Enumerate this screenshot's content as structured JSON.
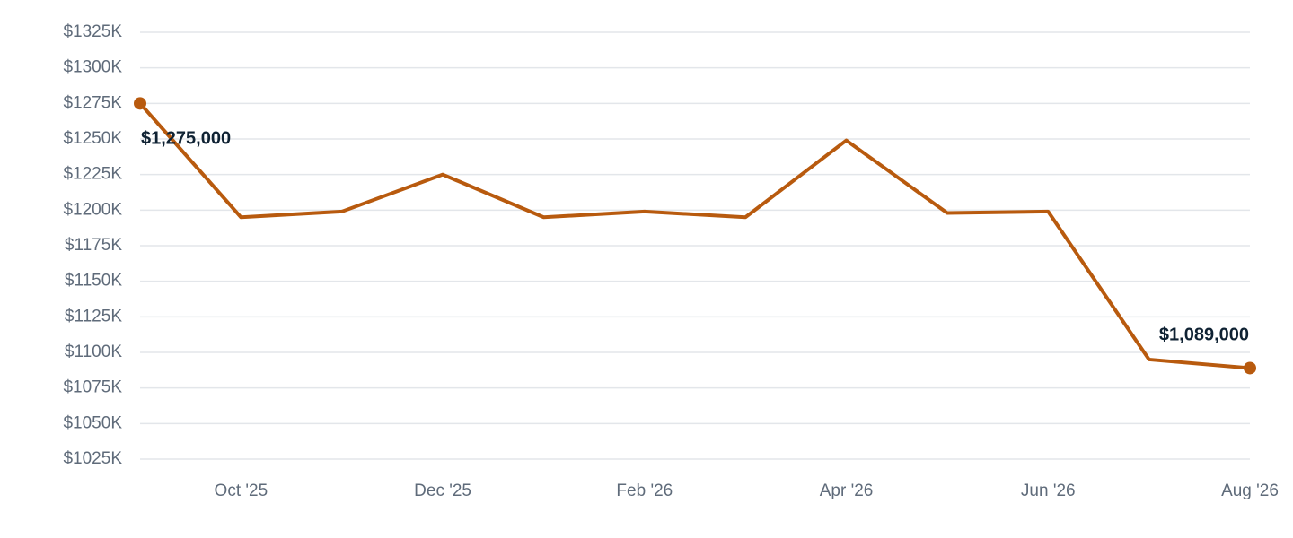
{
  "chart_data": {
    "type": "line",
    "categories": [
      null,
      "Oct '25",
      null,
      "Dec '25",
      null,
      "Feb '26",
      null,
      "Apr '26",
      null,
      "Jun '26",
      null,
      "Aug '26"
    ],
    "series": [
      {
        "color": "#b85a0e",
        "values": [
          1275000,
          1195000,
          1199000,
          1225000,
          1195000,
          1199000,
          1195000,
          1249000,
          1198000,
          1199000,
          1095000,
          1089000
        ],
        "value_labels": [
          "$1,275,000",
          null,
          null,
          null,
          null,
          null,
          null,
          null,
          null,
          null,
          null,
          "$1,089,000"
        ]
      }
    ],
    "ylim": [
      1025000,
      1325000
    ],
    "yticks": [
      {
        "value": 1025000,
        "label": "$1025K"
      },
      {
        "value": 1050000,
        "label": "$1050K"
      },
      {
        "value": 1075000,
        "label": "$1075K"
      },
      {
        "value": 1100000,
        "label": "$1100K"
      },
      {
        "value": 1125000,
        "label": "$1125K"
      },
      {
        "value": 1150000,
        "label": "$1150K"
      },
      {
        "value": 1175000,
        "label": "$1175K"
      },
      {
        "value": 1200000,
        "label": "$1200K"
      },
      {
        "value": 1225000,
        "label": "$1225K"
      },
      {
        "value": 1250000,
        "label": "$1250K"
      },
      {
        "value": 1275000,
        "label": "$1275K"
      },
      {
        "value": 1300000,
        "label": "$1300K"
      },
      {
        "value": 1325000,
        "label": "$1325K"
      }
    ],
    "grid": true
  }
}
